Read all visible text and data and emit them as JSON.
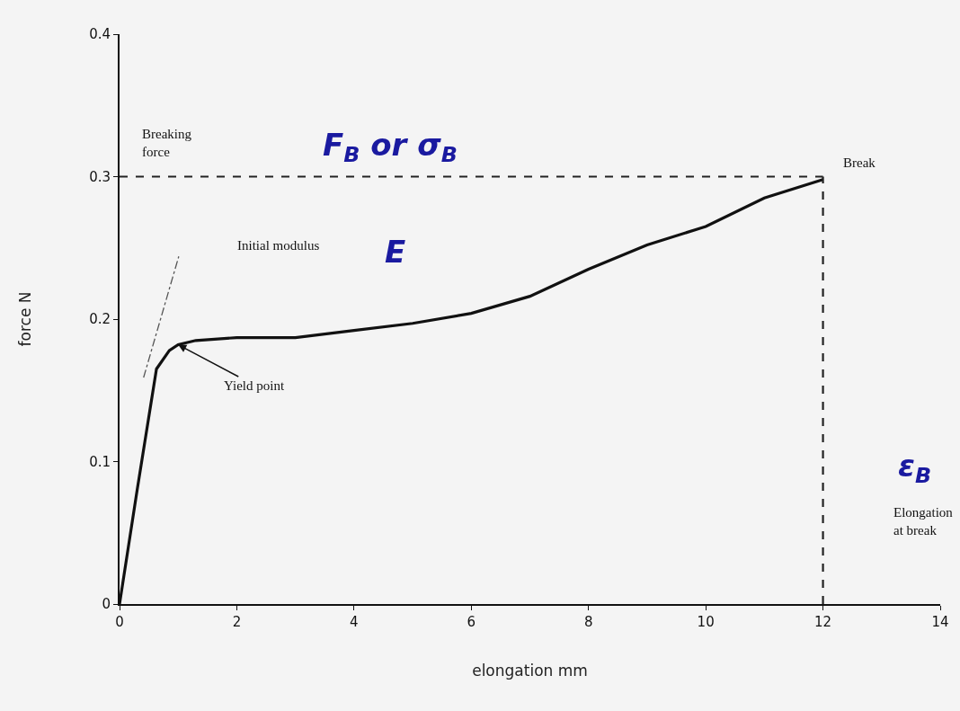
{
  "chart_data": {
    "type": "line",
    "xlabel": "elongation mm",
    "ylabel": "force N",
    "xlim": [
      0,
      14
    ],
    "xticks": [
      0,
      2,
      4,
      6,
      8,
      10,
      12,
      14
    ],
    "ylim": [
      0,
      0.4
    ],
    "yticks": [
      0,
      0.1,
      0.2,
      0.3,
      0.4
    ],
    "grid": false,
    "marker": "none",
    "series": [
      {
        "color": "#111111",
        "line_style": "solid",
        "x": [
          0,
          0.3,
          0.63,
          0.85,
          1.0,
          1.3,
          2,
          3,
          4,
          5,
          6,
          7,
          8,
          9,
          10,
          11,
          12
        ],
        "values": [
          0,
          0.08,
          0.165,
          0.178,
          0.182,
          0.185,
          0.187,
          0.187,
          0.192,
          0.197,
          0.204,
          0.216,
          0.235,
          0.252,
          0.265,
          0.285,
          0.298
        ]
      },
      {
        "color": "#555555",
        "line_style": "dotted",
        "x": [
          0.41,
          1.01
        ],
        "values": [
          0.159,
          0.244
        ]
      },
      {
        "color": "#222222",
        "line_style": "dashed",
        "x": [
          0,
          12
        ],
        "values": [
          0.3,
          0.3
        ]
      },
      {
        "color": "#222222",
        "line_style": "dashed",
        "x": [
          12,
          12
        ],
        "values": [
          0,
          0.3
        ]
      }
    ],
    "annotations": [
      "Breaking\nforce",
      "F$_{B}$ or σ$_{B}$",
      "Break",
      "Initial modulus",
      "E",
      {
        "text": "Yield point",
        "x": 1.0,
        "y": 0.182
      },
      "ε$_{B}$",
      "Elongation\nat break"
    ]
  }
}
